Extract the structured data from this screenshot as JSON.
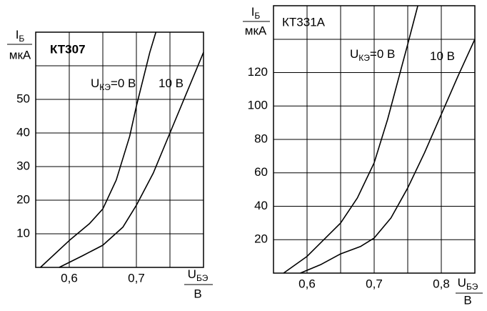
{
  "chart_data": [
    {
      "type": "line",
      "title": "КТ307",
      "y_label": {
        "symbol": "I",
        "subscript": "Б",
        "unit": "мкА"
      },
      "x_label": {
        "symbol": "U",
        "subscript": "БЭ",
        "unit": "В"
      },
      "xlim": [
        0.55,
        0.8
      ],
      "ylim": [
        0,
        70
      ],
      "xticks": [
        {
          "value": 0.6,
          "label": "0,6"
        },
        {
          "value": 0.7,
          "label": "0,7"
        }
      ],
      "minor_xgrid": [
        0.65,
        0.75
      ],
      "yticks": [
        10,
        20,
        30,
        40,
        50
      ],
      "grid": true,
      "annotations": [
        {
          "symbol": "U",
          "subscript": "КЭ",
          "text": "=0 В"
        },
        {
          "text": "10 В"
        }
      ],
      "series": [
        {
          "color": "#000000",
          "x": [
            0.557,
            0.6,
            0.63,
            0.65,
            0.67,
            0.69,
            0.7,
            0.71,
            0.72,
            0.729
          ],
          "values": [
            0,
            8,
            13,
            17.4,
            26,
            39,
            48,
            56,
            64,
            70
          ]
        },
        {
          "color": "#000000",
          "x": [
            0.585,
            0.62,
            0.65,
            0.68,
            0.7,
            0.725,
            0.75,
            0.775,
            0.8
          ],
          "values": [
            0,
            3.5,
            6.6,
            12,
            18.5,
            28,
            40,
            52,
            64
          ]
        }
      ]
    },
    {
      "type": "line",
      "title": "КТ331А",
      "y_label": {
        "symbol": "I",
        "subscript": "Б",
        "unit": "мкА"
      },
      "x_label": {
        "symbol": "U",
        "subscript": "БЭ",
        "unit": "В"
      },
      "xlim": [
        0.55,
        0.85
      ],
      "ylim": [
        0,
        160
      ],
      "xticks": [
        {
          "value": 0.6,
          "label": "0,6"
        },
        {
          "value": 0.7,
          "label": "0,7"
        },
        {
          "value": 0.8,
          "label": "0,8"
        }
      ],
      "minor_xgrid": [
        0.65,
        0.75
      ],
      "yticks": [
        20,
        40,
        60,
        80,
        100,
        120
      ],
      "grid": true,
      "annotations": [
        {
          "symbol": "U",
          "subscript": "КЭ",
          "text": "=0 В"
        },
        {
          "text": "10 В"
        }
      ],
      "series": [
        {
          "color": "#000000",
          "x": [
            0.565,
            0.6,
            0.63,
            0.65,
            0.675,
            0.7,
            0.72,
            0.74,
            0.75,
            0.765
          ],
          "values": [
            0,
            10,
            22,
            30,
            45,
            66,
            92,
            122,
            137,
            160
          ]
        },
        {
          "color": "#000000",
          "x": [
            0.59,
            0.62,
            0.65,
            0.68,
            0.7,
            0.725,
            0.75,
            0.775,
            0.8,
            0.825,
            0.85
          ],
          "values": [
            0,
            5,
            11.5,
            16,
            21,
            33,
            51,
            72,
            95,
            118,
            140
          ]
        }
      ]
    }
  ]
}
